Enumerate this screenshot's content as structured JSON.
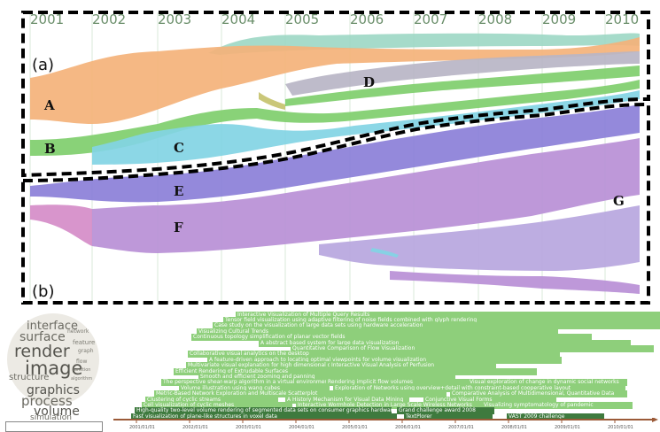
{
  "years": [
    "2001",
    "2002",
    "2003",
    "2004",
    "2005",
    "2006",
    "2007",
    "2008",
    "2009",
    "2010"
  ],
  "panel_labels": [
    "(a)",
    "(b)"
  ],
  "topic_labels": [
    "A",
    "B",
    "C",
    "D",
    "E",
    "F",
    "G"
  ],
  "colors": {
    "orange": "#f4b27a",
    "green": "#7fce6c",
    "cyan": "#82d4e4",
    "teal": "#9ed8c6",
    "gray": "#b9b5c6",
    "lavender": "#b7a6de",
    "purple": "#8b7fd8",
    "violet": "#b98fd6",
    "pink": "#d58cc8",
    "olive": "#c6c26e",
    "doc": "#8ecf7b",
    "doc_dark": "#3e7a3e"
  },
  "word_cloud": [
    {
      "text": "interface",
      "size": 13,
      "color": "#6b6a62"
    },
    {
      "text": "surface",
      "size": 14,
      "color": "#6b6a62"
    },
    {
      "text": "render",
      "size": 19,
      "color": "#55544e"
    },
    {
      "text": "image",
      "size": 21,
      "color": "#55544e"
    },
    {
      "text": "structure",
      "size": 10,
      "color": "#6b6a62"
    },
    {
      "text": "graphics",
      "size": 14,
      "color": "#55544e"
    },
    {
      "text": "process",
      "size": 15,
      "color": "#6b6a62"
    },
    {
      "text": "volume",
      "size": 14,
      "color": "#55544e"
    },
    {
      "text": "simulation",
      "size": 9,
      "color": "#6b6a62"
    },
    {
      "text": "network",
      "size": 6,
      "color": "#7d7c74"
    },
    {
      "text": "feature",
      "size": 7,
      "color": "#7d7c74"
    },
    {
      "text": "graph",
      "size": 6,
      "color": "#7d7c74"
    },
    {
      "text": "flow",
      "size": 6,
      "color": "#7d7c74"
    },
    {
      "text": "function",
      "size": 5,
      "color": "#7d7c74"
    },
    {
      "text": "algorithm",
      "size": 5,
      "color": "#7d7c74"
    }
  ],
  "documents": [
    {
      "title": "Interactive Visualization of Multiple Query Results",
      "dark": false
    },
    {
      "title": "Tensor field visualization using adaptive filtering of noise fields combined with glyph rendering",
      "dark": false
    },
    {
      "title": "Case study on the visualization of large data sets using hardware acceleration",
      "dark": false
    },
    {
      "title": "Visualizing Cultural Trends",
      "dark": false
    },
    {
      "title": "Continuous topology simplification of planar vector fields",
      "dark": false
    },
    {
      "title": "A abstract based system for large data visualization",
      "dark": false
    },
    {
      "title": "Quantitative Comparison of Flow Visualization",
      "dark": false
    },
    {
      "title": "Collaborative visual analytics on the desktop",
      "dark": false
    },
    {
      "title": "A feature-driven approach to locating optimal viewpoints for volume visualization",
      "dark": false
    },
    {
      "title": "Multivariate visual explanation for high dimensional datasets",
      "dark": false
    },
    {
      "title": "Interactive Visual Analysis of Perfusion Data",
      "dark": false
    },
    {
      "title": "Efficient Rendering of Extrudable Surfaces",
      "dark": false
    },
    {
      "title": "Smooth and efficient zooming and panning",
      "dark": false
    },
    {
      "title": "The perspective shear-warp algorithm in a virtual environment",
      "dark": false
    },
    {
      "title": "Rendering implicit flow volumes",
      "dark": false
    },
    {
      "title": "Visual exploration of change in dynamic social networks",
      "dark": false
    },
    {
      "title": "Volume illustration using wang cubes",
      "dark": false
    },
    {
      "title": "Exploration of Networks using overview+detail with constraint-based cooperative layout",
      "dark": false
    },
    {
      "title": "Metric-Based Network Exploration and Multiscale Scatterplot",
      "dark": false
    },
    {
      "title": "Comparative Analysis of Multidimensional, Quantitative Data",
      "dark": false
    },
    {
      "title": "Clustering of cyclic streams",
      "dark": false
    },
    {
      "title": "A History Mechanism for Visual Data Mining",
      "dark": false
    },
    {
      "title": "Conjunctive Visual Forms",
      "dark": false
    },
    {
      "title": "Cell visualization of cyclic meshes",
      "dark": false
    },
    {
      "title": "Interactive Wormhole Detection in Large Scale Wireless Networks",
      "dark": false
    },
    {
      "title": "Visualizing symptomatology of pandemic",
      "dark": false
    },
    {
      "title": "High-quality two-level volume rendering of segmented data sets on consumer graphics hardware",
      "dark": true
    },
    {
      "title": "Grand challenge award 2008",
      "dark": true
    },
    {
      "title": "Fast visualization of plane-like structures in voxel data",
      "dark": true
    },
    {
      "title": "TextPlorer",
      "dark": true
    },
    {
      "title": "VAST 2009 challenge",
      "dark": true
    }
  ],
  "axis_ticks": [
    "2001/01/01",
    "2002/01/01",
    "2003/01/01",
    "2004/01/01",
    "2005/01/01",
    "2006/01/01",
    "2007/01/01",
    "2008/01/01",
    "2009/01/01",
    "2010/01/01"
  ]
}
